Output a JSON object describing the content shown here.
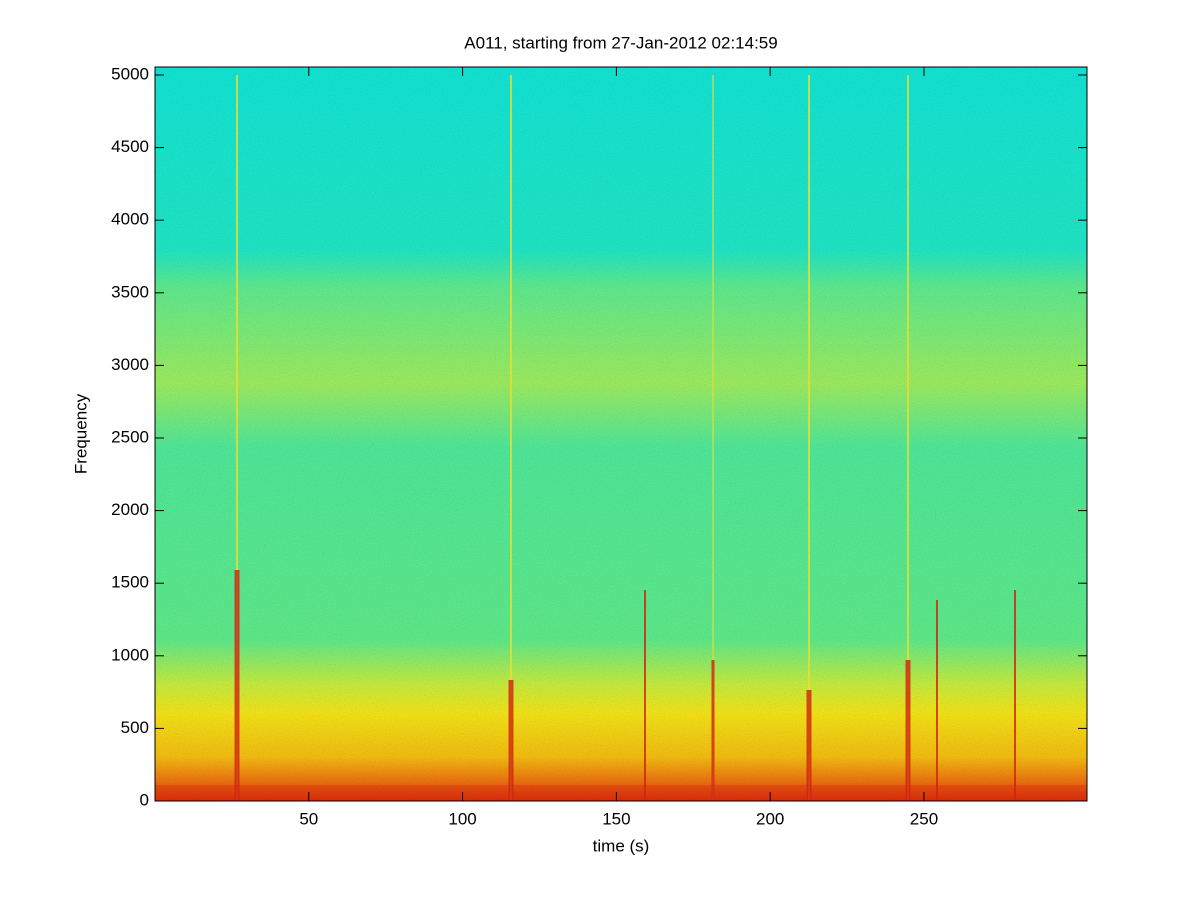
{
  "chart_data": {
    "type": "spectrogram",
    "title": "A011, starting from 27-Jan-2012 02:14:59",
    "x_label": "time (s)",
    "y_label": "Frequency",
    "xlim": [
      0,
      303
    ],
    "xticks": [
      50,
      100,
      150,
      200,
      250
    ],
    "ylim": [
      0,
      5055
    ],
    "yticks": [
      0,
      500,
      1000,
      1500,
      2000,
      2500,
      3000,
      3500,
      4000,
      4500,
      5000
    ],
    "colormap": "jet"
  }
}
